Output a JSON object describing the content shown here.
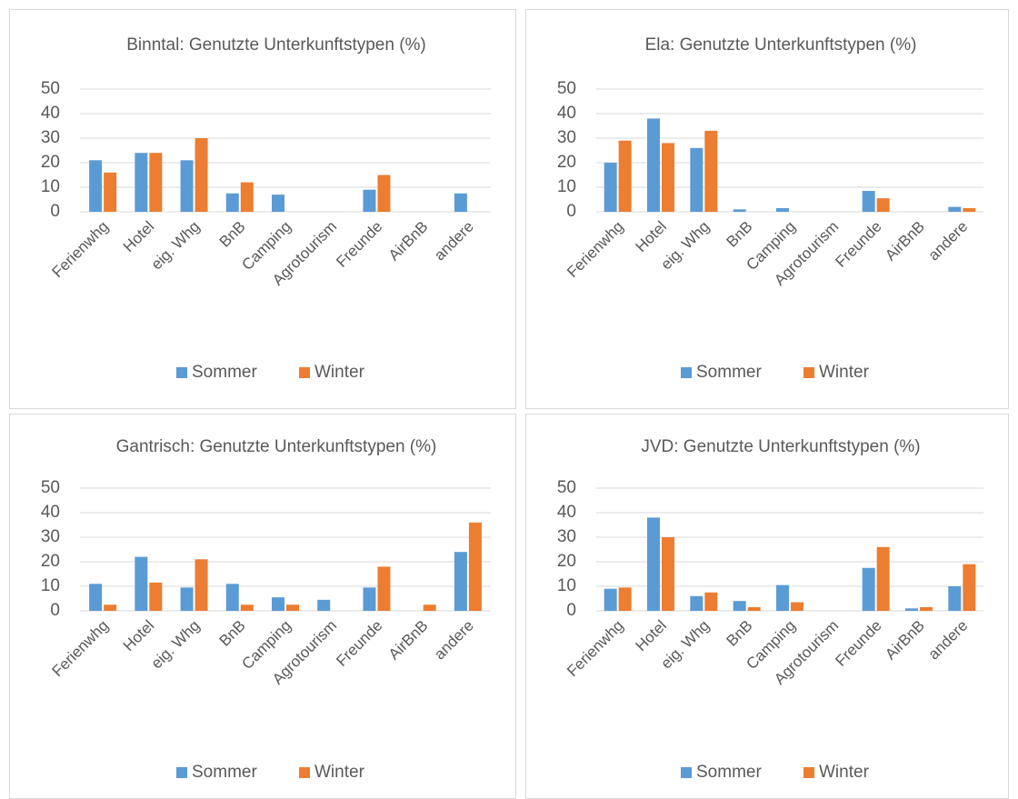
{
  "chart_data": [
    {
      "type": "bar",
      "title": "Binntal: Genutzte Unterkunftstypen (%)",
      "categories": [
        "Ferienwhg",
        "Hotel",
        "eig. Whg",
        "BnB",
        "Camping",
        "Agrotourism",
        "Freunde",
        "AirBnB",
        "andere"
      ],
      "series": [
        {
          "name": "Sommer",
          "color": "#5b9bd5",
          "values": [
            21,
            24,
            21,
            7.5,
            7,
            0,
            9,
            0,
            7.5
          ]
        },
        {
          "name": "Winter",
          "color": "#ed7d31",
          "values": [
            16,
            24,
            30,
            12,
            0,
            0,
            15,
            0,
            0
          ]
        }
      ],
      "ylim": [
        0,
        50
      ],
      "yticks": [
        0,
        10,
        20,
        30,
        40,
        50
      ],
      "grid": true,
      "legend": "bottom"
    },
    {
      "type": "bar",
      "title": "Ela: Genutzte Unterkunftstypen (%)",
      "categories": [
        "Ferienwhg",
        "Hotel",
        "eig. Whg",
        "BnB",
        "Camping",
        "Agrotourism",
        "Freunde",
        "AirBnB",
        "andere"
      ],
      "series": [
        {
          "name": "Sommer",
          "color": "#5b9bd5",
          "values": [
            20,
            38,
            26,
            1,
            1.5,
            0,
            8.5,
            0,
            2
          ]
        },
        {
          "name": "Winter",
          "color": "#ed7d31",
          "values": [
            29,
            28,
            33,
            0,
            0,
            0,
            5.5,
            0,
            1.5
          ]
        }
      ],
      "ylim": [
        0,
        50
      ],
      "yticks": [
        0,
        10,
        20,
        30,
        40,
        50
      ],
      "grid": true,
      "legend": "bottom"
    },
    {
      "type": "bar",
      "title": "Gantrisch: Genutzte Unterkunftstypen (%)",
      "categories": [
        "Ferienwhg",
        "Hotel",
        "eig. Whg",
        "BnB",
        "Camping",
        "Agrotourism",
        "Freunde",
        "AirBnB",
        "andere"
      ],
      "series": [
        {
          "name": "Sommer",
          "color": "#5b9bd5",
          "values": [
            11,
            22,
            9.5,
            11,
            5.5,
            4.5,
            9.5,
            0,
            24
          ]
        },
        {
          "name": "Winter",
          "color": "#ed7d31",
          "values": [
            2.5,
            11.5,
            21,
            2.5,
            2.5,
            0,
            18,
            2.5,
            36
          ]
        }
      ],
      "ylim": [
        0,
        50
      ],
      "yticks": [
        0,
        10,
        20,
        30,
        40,
        50
      ],
      "grid": true,
      "legend": "bottom"
    },
    {
      "type": "bar",
      "title": "JVD: Genutzte Unterkunftstypen (%)",
      "categories": [
        "Ferienwhg",
        "Hotel",
        "eig. Whg",
        "BnB",
        "Camping",
        "Agrotourism",
        "Freunde",
        "AirBnB",
        "andere"
      ],
      "series": [
        {
          "name": "Sommer",
          "color": "#5b9bd5",
          "values": [
            9,
            38,
            6,
            4,
            10.5,
            0,
            17.5,
            1,
            10
          ]
        },
        {
          "name": "Winter",
          "color": "#ed7d31",
          "values": [
            9.5,
            30,
            7.5,
            1.5,
            3.5,
            0,
            26,
            1.5,
            19
          ]
        }
      ],
      "ylim": [
        0,
        50
      ],
      "yticks": [
        0,
        10,
        20,
        30,
        40,
        50
      ],
      "grid": true,
      "legend": "bottom"
    }
  ]
}
